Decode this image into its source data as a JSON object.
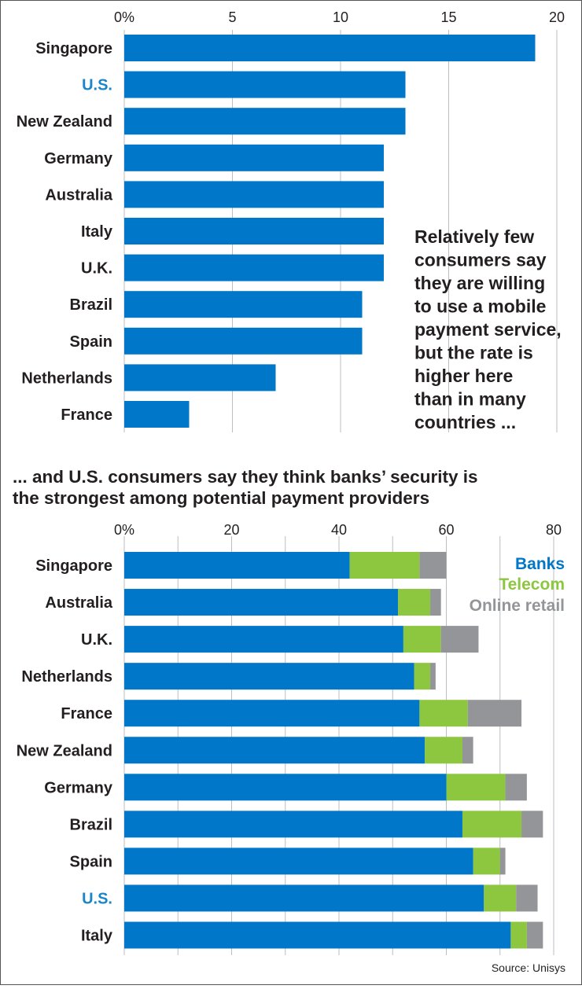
{
  "colors": {
    "bar": "#0077c8",
    "banks": "#0077c8",
    "telecom": "#8dc63f",
    "online_retail": "#939598",
    "highlight_label": "#1a85c8",
    "grid": "#bcbec0",
    "text": "#231f20",
    "border": "#555555"
  },
  "chart_data": [
    {
      "type": "bar",
      "orientation": "horizontal",
      "title": "",
      "xlabel": "",
      "ylabel": "",
      "xlim": [
        0,
        20
      ],
      "ticks": [
        "0%",
        "5",
        "10",
        "15",
        "20"
      ],
      "tick_values": [
        0,
        5,
        10,
        15,
        20
      ],
      "grid": true,
      "highlight": [
        "U.S."
      ],
      "categories": [
        "Singapore",
        "U.S.",
        "New Zealand",
        "Germany",
        "Australia",
        "Italy",
        "U.K.",
        "Brazil",
        "Spain",
        "Netherlands",
        "France"
      ],
      "values": [
        19,
        13,
        13,
        12,
        12,
        12,
        12,
        11,
        11,
        7,
        3
      ],
      "annotation": [
        "Relatively few",
        "consumers say",
        "they are willing",
        "to use a mobile",
        "payment service,",
        "but the rate is",
        "higher here",
        "than in many",
        "countries ..."
      ]
    },
    {
      "type": "bar",
      "orientation": "horizontal",
      "stacked": true,
      "title": [
        "... and U.S. consumers say they think banks’ security is",
        "the strongest among potential payment providers"
      ],
      "xlabel": "",
      "ylabel": "",
      "xlim": [
        0,
        80
      ],
      "ticks": [
        "0%",
        "20",
        "40",
        "60",
        "80"
      ],
      "tick_values": [
        0,
        20,
        40,
        60,
        80
      ],
      "grid": true,
      "legend_position": "top-right",
      "highlight": [
        "U.S."
      ],
      "categories": [
        "Singapore",
        "Australia",
        "U.K.",
        "Netherlands",
        "France",
        "New Zealand",
        "Germany",
        "Brazil",
        "Spain",
        "U.S.",
        "Italy"
      ],
      "series": [
        {
          "name": "Banks",
          "values": [
            42,
            51,
            52,
            54,
            55,
            56,
            60,
            63,
            65,
            67,
            72
          ]
        },
        {
          "name": "Telecom",
          "values": [
            13,
            6,
            7,
            3,
            9,
            7,
            11,
            11,
            5,
            6,
            3
          ]
        },
        {
          "name": "Online retail",
          "values": [
            5,
            2,
            7,
            1,
            10,
            2,
            4,
            4,
            1,
            4,
            3
          ]
        }
      ],
      "source": "Source: Unisys"
    }
  ]
}
